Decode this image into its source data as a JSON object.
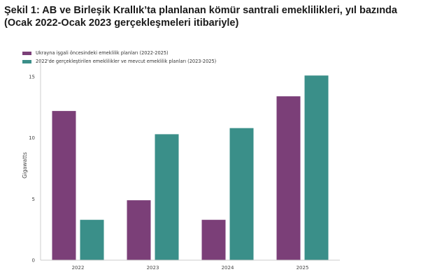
{
  "title": {
    "line1": "Şekil 1: AB ve Birleşik Krallık’ta planlanan kömür santrali emeklilikleri, yıl bazında",
    "line2": "(Ocak 2022-Ocak 2023 gerçekleşmeleri itibariyle)"
  },
  "chart_data": {
    "type": "bar",
    "categories": [
      "2022",
      "2023",
      "2024",
      "2025"
    ],
    "series": [
      {
        "name": "Ukrayna işgali öncesindeki emeklilik planları (2022-2025)",
        "color": "#7b3f78",
        "values": [
          12.2,
          4.9,
          3.3,
          13.4
        ]
      },
      {
        "name": "2022'de gerçekleştirilen emeklilikler ve mevcut emeklilik planları (2023-2025)",
        "color": "#3a8f89",
        "values": [
          3.3,
          10.3,
          10.8,
          15.1
        ]
      }
    ],
    "xlabel": "",
    "ylabel": "Gigawatts",
    "ylim": [
      0,
      15.8
    ],
    "yticks": [
      0,
      5,
      10,
      15
    ],
    "grid": false,
    "legend": "top-left"
  }
}
